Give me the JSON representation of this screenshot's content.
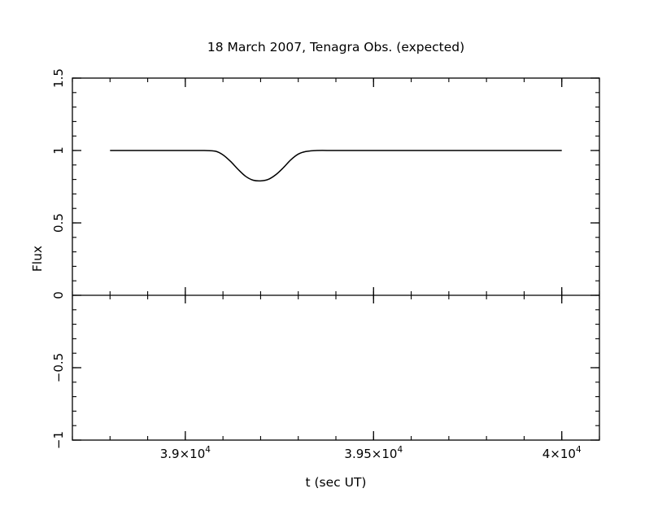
{
  "chart_data": {
    "type": "line",
    "title": "18 March 2007, Tenagra Obs. (expected)",
    "xlabel": "t (sec UT)",
    "ylabel": "Flux",
    "xlim": [
      38700,
      40100
    ],
    "ylim": [
      -1.0,
      1.5
    ],
    "x_ticks": [
      {
        "value": 39000,
        "label": "3.9×10",
        "exp": "4"
      },
      {
        "value": 39500,
        "label": "3.95×10",
        "exp": "4"
      },
      {
        "value": 40000,
        "label": "4×10",
        "exp": "4"
      }
    ],
    "y_ticks": [
      {
        "value": -1.0,
        "label": "−1"
      },
      {
        "value": -0.5,
        "label": "−0.5"
      },
      {
        "value": 0.0,
        "label": "0"
      },
      {
        "value": 0.5,
        "label": "0.5"
      },
      {
        "value": 1.0,
        "label": "1"
      },
      {
        "value": 1.5,
        "label": "1.5"
      }
    ],
    "zero_line": 0,
    "grid": false,
    "series": [
      {
        "x": [
          38800,
          38900,
          39000,
          39050,
          39080,
          39100,
          39120,
          39140,
          39160,
          39180,
          39200,
          39220,
          39240,
          39260,
          39280,
          39300,
          39320,
          39350,
          39400,
          39500,
          39700,
          39900,
          40000
        ],
        "y": [
          1.0,
          1.0,
          1.0,
          1.0,
          0.995,
          0.97,
          0.925,
          0.87,
          0.822,
          0.795,
          0.79,
          0.8,
          0.832,
          0.88,
          0.935,
          0.975,
          0.993,
          1.0,
          1.0,
          1.0,
          1.0,
          1.0,
          1.0
        ],
        "color": "#000000"
      }
    ]
  }
}
